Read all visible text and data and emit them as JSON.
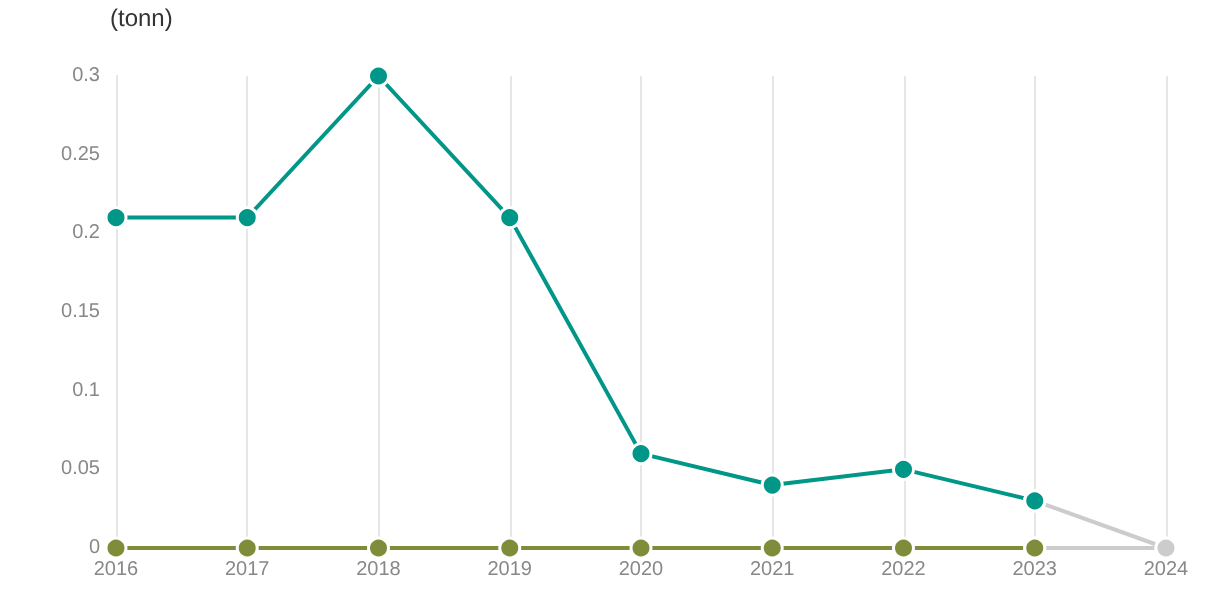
{
  "chart_data": {
    "type": "line",
    "ylabel": "(tonn)",
    "categories": [
      "2016",
      "2017",
      "2018",
      "2019",
      "2020",
      "2021",
      "2022",
      "2023",
      "2024"
    ],
    "series": [
      {
        "color": "#cccccc",
        "values": [
          null,
          null,
          null,
          null,
          null,
          null,
          null,
          0.03,
          0
        ]
      },
      {
        "color": "#cccccc",
        "values": [
          null,
          null,
          null,
          null,
          null,
          null,
          null,
          0,
          0
        ]
      },
      {
        "color": "#009688",
        "values": [
          0.21,
          0.21,
          0.3,
          0.21,
          0.06,
          0.04,
          0.05,
          0.03,
          null
        ]
      },
      {
        "color": "#7f8c3a",
        "values": [
          0,
          0,
          0,
          0,
          0,
          0,
          0,
          0,
          null
        ]
      }
    ],
    "ylim": [
      0,
      0.3
    ],
    "yticks": [
      0,
      0.05,
      0.1,
      0.15,
      0.2,
      0.25,
      0.3
    ],
    "grid": "x",
    "marker": "circle"
  }
}
